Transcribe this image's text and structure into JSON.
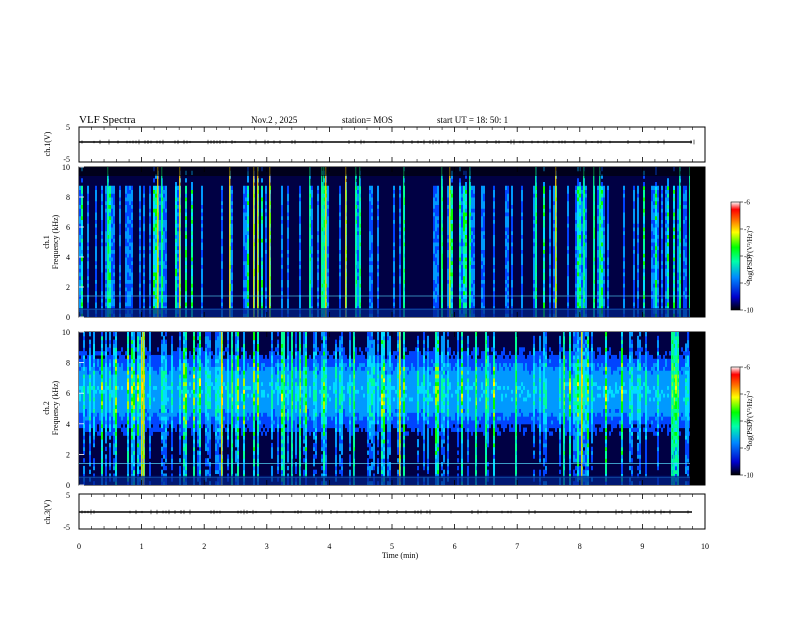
{
  "header": {
    "title": "VLF Spectra",
    "date": "Nov.2 , 2025",
    "station": "station= MOS",
    "start": "start UT = 18: 50: 1"
  },
  "chart_data": [
    {
      "type": "line",
      "panel": "channel-1-voltage",
      "ylabel": "ch.1(V)",
      "ylim": [
        -5,
        5
      ],
      "yticks": [
        "5",
        "-5"
      ],
      "description_value": "flat trace near 0 V",
      "trace_level": 0
    },
    {
      "type": "heatmap",
      "panel": "channel-1-spectrogram",
      "ylabel": "ch.1\nFrequency (kHz)",
      "ylabel_lines": [
        "ch.1",
        "Frequency (kHz)"
      ],
      "ylim": [
        0,
        10
      ],
      "yticks": [
        "0",
        "2",
        "4",
        "6",
        "8",
        "10"
      ],
      "colorbar": {
        "label": "log(PSD) (V²/Hz)",
        "ticks": [
          "-6",
          "-7",
          "-8",
          "-9",
          "-10"
        ],
        "range": [
          -10,
          -6
        ]
      }
    },
    {
      "type": "heatmap",
      "panel": "channel-2-spectrogram",
      "ylabel": "ch.2\nFrequency (kHz)",
      "ylabel_lines": [
        "ch.2",
        "Frequency (kHz)"
      ],
      "ylim": [
        0,
        10
      ],
      "yticks": [
        "0",
        "2",
        "4",
        "6",
        "8",
        "10"
      ],
      "colorbar": {
        "label": "log(PSD) (V²/Hz)",
        "ticks": [
          "-6",
          "-7",
          "-8",
          "-9",
          "-10"
        ],
        "range": [
          -10,
          -6
        ]
      }
    },
    {
      "type": "line",
      "panel": "channel-3-voltage",
      "ylabel": "ch.3(V)",
      "ylim": [
        -5,
        5
      ],
      "yticks": [
        "5",
        "-5"
      ],
      "trace_level": 0
    }
  ],
  "xaxis": {
    "label": "Time (min)",
    "xlim": [
      0,
      10
    ],
    "ticks": [
      "0",
      "1",
      "2",
      "3",
      "4",
      "5",
      "6",
      "7",
      "8",
      "9",
      "10"
    ],
    "data_end_min": 9.85
  },
  "colors": {
    "colormap": [
      "#000066",
      "#0000ff",
      "#00aaff",
      "#00ffcc",
      "#00ff00",
      "#aaff00",
      "#ffff00",
      "#ff8800",
      "#ff0000",
      "#ffffff"
    ],
    "background": "#000033"
  }
}
